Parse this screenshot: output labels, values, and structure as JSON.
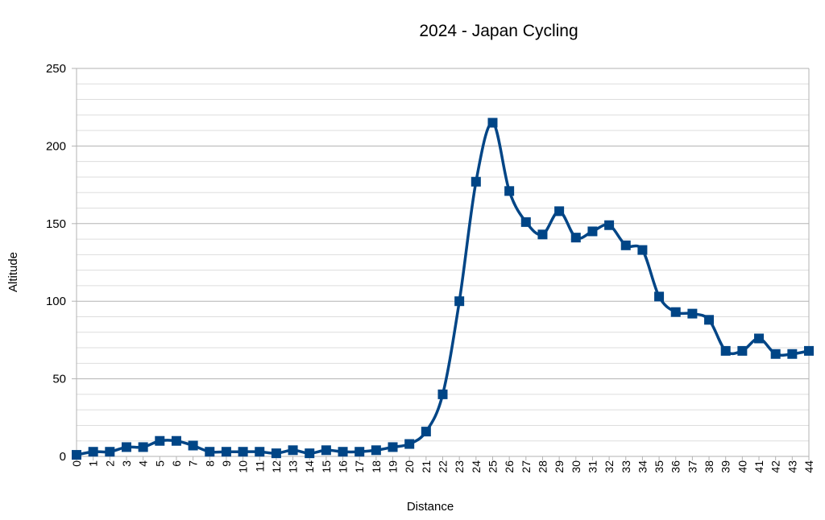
{
  "chart_data": {
    "type": "line",
    "title": "2024 - Japan Cycling",
    "xlabel": "Distance",
    "ylabel": "Altitude",
    "x": [
      0,
      1,
      2,
      3,
      4,
      5,
      6,
      7,
      8,
      9,
      10,
      11,
      12,
      13,
      14,
      15,
      16,
      17,
      18,
      19,
      20,
      21,
      22,
      23,
      24,
      25,
      26,
      27,
      28,
      29,
      30,
      31,
      32,
      33,
      34,
      35,
      36,
      37,
      38,
      39,
      40,
      41,
      42,
      43,
      44
    ],
    "series": [
      {
        "values": [
          1,
          3,
          3,
          6,
          6,
          10,
          10,
          7,
          3,
          3,
          3,
          3,
          2,
          4,
          2,
          4,
          3,
          3,
          4,
          6,
          8,
          16,
          40,
          100,
          177,
          215,
          171,
          151,
          143,
          158,
          141,
          145,
          149,
          136,
          133,
          103,
          93,
          92,
          88,
          68,
          68,
          76,
          66,
          66,
          68
        ]
      }
    ],
    "ylim": [
      0,
      250
    ],
    "yticks": [
      0,
      50,
      100,
      150,
      200,
      250
    ],
    "grid": true,
    "legend": "none",
    "line_color": "#004586",
    "smooth": true
  }
}
